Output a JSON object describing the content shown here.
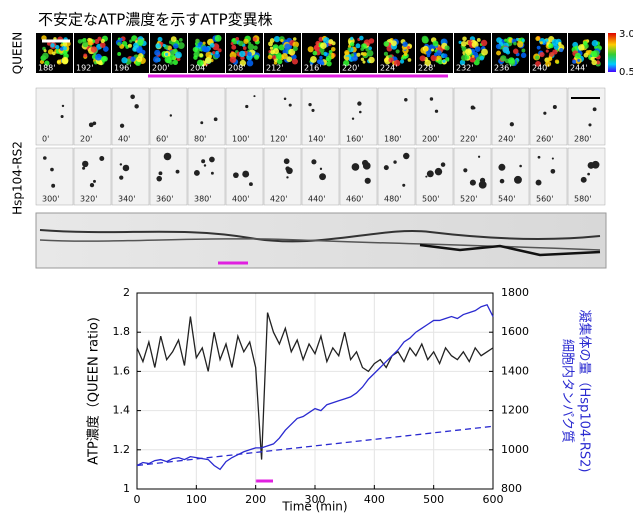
{
  "title": "不安定なATP濃度を示すATP変異株",
  "queen": {
    "label": "QUEEN",
    "colorbar": [
      "3.0",
      "0.5"
    ],
    "frames": [
      "188'",
      "192'",
      "196'",
      "200'",
      "204'",
      "208'",
      "212'",
      "216'",
      "220'",
      "224'",
      "228'",
      "232'",
      "236'",
      "240'",
      "244'"
    ]
  },
  "hsp104": {
    "label": "Hsp104-RS2",
    "frames_row1": [
      "0'",
      "20'",
      "40'",
      "60'",
      "80'",
      "100'",
      "120'",
      "140'",
      "160'",
      "180'",
      "200'",
      "220'",
      "240'",
      "260'",
      "280'"
    ],
    "frames_row2": [
      "300'",
      "320'",
      "340'",
      "360'",
      "380'",
      "400'",
      "420'",
      "440'",
      "460'",
      "480'",
      "500'",
      "520'",
      "540'",
      "560'",
      "580'"
    ]
  },
  "chart_data": {
    "type": "line",
    "xlabel": "Time (min)",
    "ylabel": "ATP濃度（QUEEN ratio)",
    "y2label": [
      "細胞内タンパク質",
      "凝集体の量（Hsp104-RS2)"
    ],
    "xlim": [
      0,
      600
    ],
    "xticks": [
      0,
      100,
      200,
      300,
      400,
      500,
      600
    ],
    "ylim": [
      1,
      2
    ],
    "yticks": [
      1,
      1.2,
      1.4,
      1.6,
      1.8,
      2
    ],
    "y2lim": [
      800,
      1800
    ],
    "y2ticks": [
      800,
      1000,
      1200,
      1400,
      1600,
      1800
    ],
    "grid": true,
    "x": [
      0,
      10,
      20,
      30,
      40,
      50,
      60,
      70,
      80,
      90,
      100,
      110,
      120,
      130,
      140,
      150,
      160,
      170,
      180,
      190,
      200,
      210,
      220,
      230,
      240,
      250,
      260,
      270,
      280,
      290,
      300,
      310,
      320,
      330,
      340,
      350,
      360,
      370,
      380,
      390,
      400,
      410,
      420,
      430,
      440,
      450,
      460,
      470,
      480,
      490,
      500,
      510,
      520,
      530,
      540,
      550,
      560,
      570,
      580,
      590,
      600
    ],
    "series": [
      {
        "color": "#222222",
        "values": [
          1.72,
          1.65,
          1.75,
          1.62,
          1.78,
          1.66,
          1.7,
          1.76,
          1.63,
          1.88,
          1.67,
          1.72,
          1.6,
          1.8,
          1.66,
          1.74,
          1.62,
          1.78,
          1.7,
          1.75,
          1.62,
          1.15,
          1.9,
          1.8,
          1.74,
          1.82,
          1.7,
          1.76,
          1.66,
          1.74,
          1.69,
          1.78,
          1.65,
          1.72,
          1.68,
          1.8,
          1.66,
          1.7,
          1.62,
          1.6,
          1.64,
          1.66,
          1.62,
          1.68,
          1.7,
          1.65,
          1.72,
          1.68,
          1.74,
          1.66,
          1.7,
          1.64,
          1.72,
          1.68,
          1.66,
          1.7,
          1.65,
          1.72,
          1.68,
          1.7,
          1.72
        ]
      },
      {
        "color": "#2a2ad0",
        "axis": "y2",
        "values": [
          920,
          935,
          930,
          945,
          950,
          940,
          955,
          960,
          950,
          965,
          960,
          955,
          950,
          920,
          900,
          940,
          960,
          975,
          990,
          1000,
          1010,
          1010,
          1020,
          1030,
          1060,
          1100,
          1130,
          1160,
          1170,
          1190,
          1210,
          1200,
          1230,
          1240,
          1250,
          1260,
          1270,
          1290,
          1320,
          1360,
          1390,
          1420,
          1450,
          1480,
          1510,
          1550,
          1570,
          1600,
          1620,
          1640,
          1660,
          1660,
          1670,
          1680,
          1670,
          1690,
          1700,
          1710,
          1730,
          1740,
          1680
        ]
      },
      {
        "color": "#2a2ad0",
        "axis": "y2",
        "dashed": true,
        "x": [
          0,
          600
        ],
        "values": [
          920,
          1120
        ]
      }
    ]
  }
}
